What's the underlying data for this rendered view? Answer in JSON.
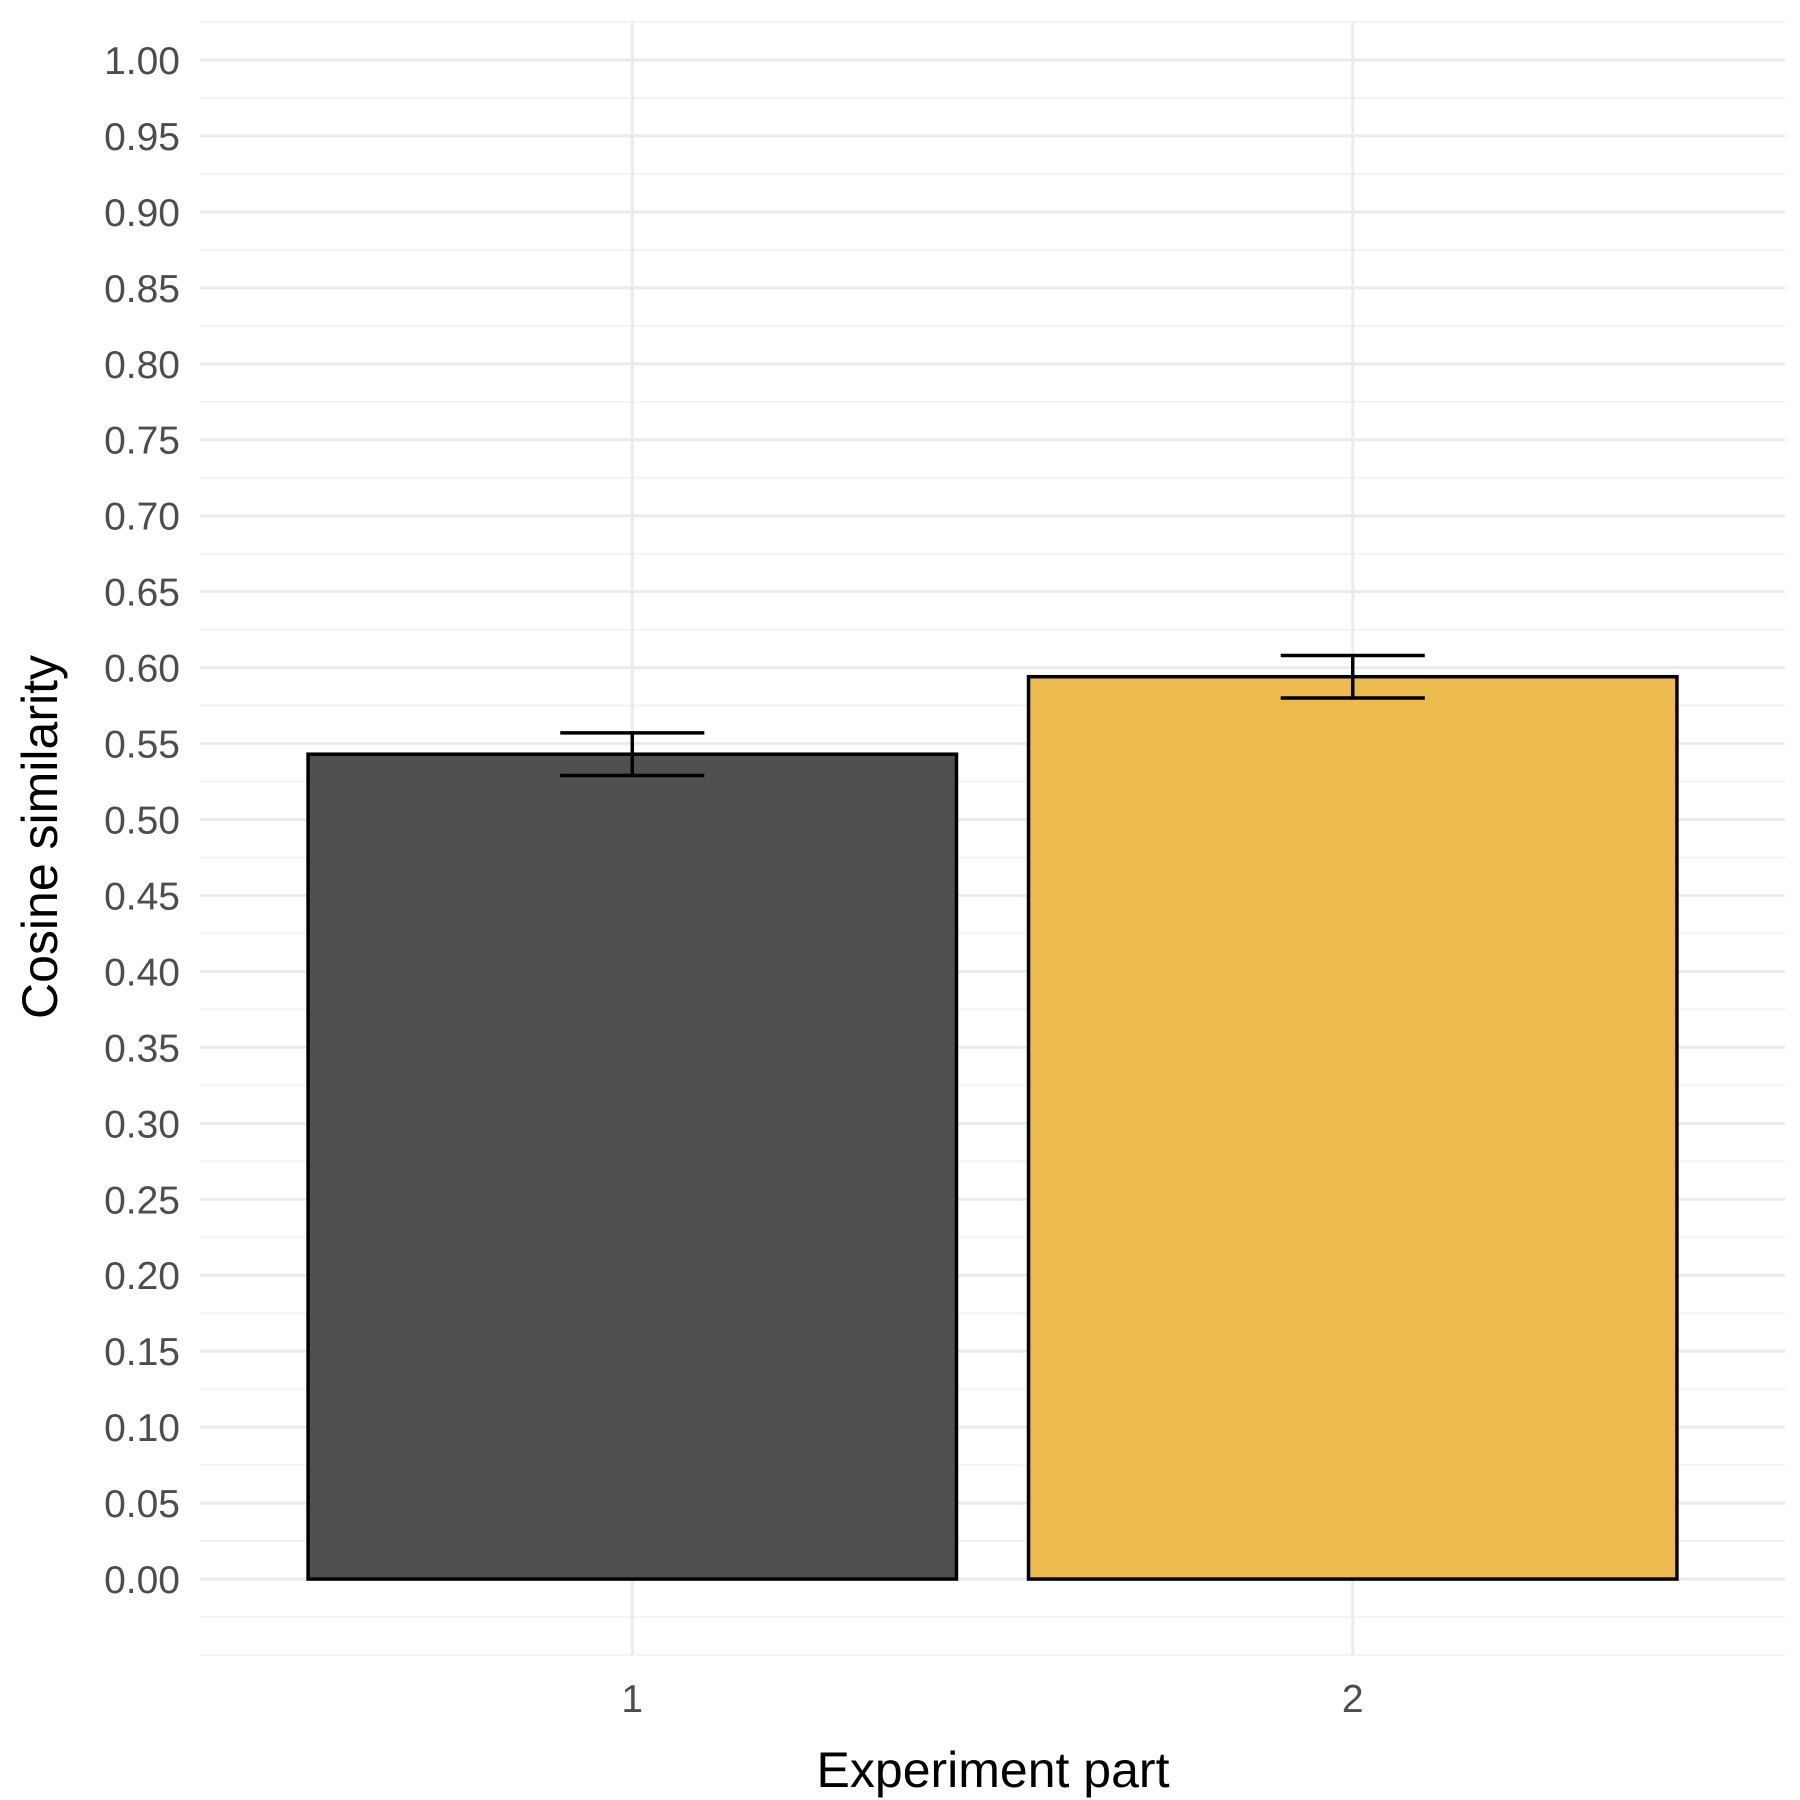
{
  "chart_data": {
    "type": "bar",
    "categories": [
      "1",
      "2"
    ],
    "values": [
      0.543,
      0.594
    ],
    "error_low": [
      0.529,
      0.58
    ],
    "error_high": [
      0.557,
      0.608
    ],
    "colors": [
      "#4d4d4d",
      "#ebba4b"
    ],
    "xlabel": "Experiment part",
    "ylabel": "Cosine similarity",
    "ylim": [
      -0.05,
      1.025
    ],
    "yticks": [
      0.0,
      0.05,
      0.1,
      0.15,
      0.2,
      0.25,
      0.3,
      0.35,
      0.4,
      0.45,
      0.5,
      0.55,
      0.6,
      0.65,
      0.7,
      0.75,
      0.8,
      0.85,
      0.9,
      0.95,
      1.0
    ],
    "ytick_labels": [
      "0.00",
      "0.05",
      "0.10",
      "0.15",
      "0.20",
      "0.25",
      "0.30",
      "0.35",
      "0.40",
      "0.45",
      "0.50",
      "0.55",
      "0.60",
      "0.65",
      "0.70",
      "0.75",
      "0.80",
      "0.85",
      "0.90",
      "0.95",
      "1.00"
    ],
    "grid": true,
    "legend": "none"
  }
}
